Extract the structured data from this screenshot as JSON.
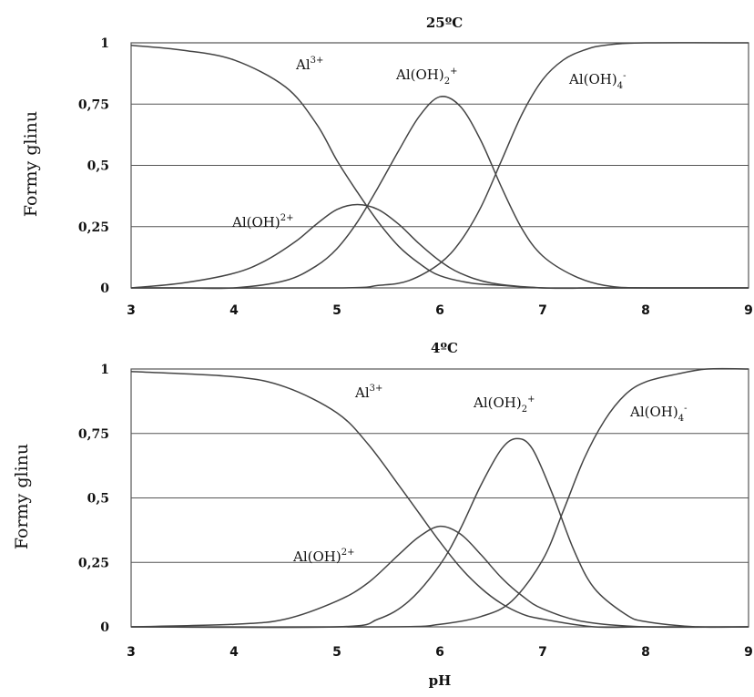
{
  "chart_data": [
    {
      "type": "line",
      "title": "25ºC",
      "ylabel": "Formy  glinu",
      "xlabel": "",
      "xlim": [
        3,
        9
      ],
      "ylim": [
        0,
        1
      ],
      "x_ticks": [
        "3",
        "4",
        "5",
        "6",
        "7",
        "8",
        "9"
      ],
      "y_ticks": [
        "0",
        "0,25",
        "0,5",
        "0,75",
        "1"
      ],
      "y_tick_values": [
        0,
        0.25,
        0.5,
        0.75,
        1
      ],
      "grid": "horizontal",
      "series": [
        {
          "name": "Al3+",
          "label_base": "Al",
          "label_sup": "3+",
          "label_sub": "",
          "label_tail": "",
          "x": [
            3.0,
            3.5,
            4.0,
            4.5,
            4.8,
            5.0,
            5.2,
            5.4,
            5.6,
            5.8,
            6.0,
            6.3,
            6.6,
            7.0,
            7.5,
            8.0,
            9.0
          ],
          "values": [
            0.99,
            0.97,
            0.93,
            0.82,
            0.67,
            0.52,
            0.39,
            0.27,
            0.17,
            0.1,
            0.05,
            0.02,
            0.01,
            0.0,
            0.0,
            0.0,
            0.0
          ]
        },
        {
          "name": "Al(OH)2+",
          "label_base": "Al(OH)",
          "label_sup": "2+",
          "label_sub": "",
          "label_tail": "",
          "x": [
            3.0,
            3.5,
            4.0,
            4.3,
            4.6,
            4.8,
            5.0,
            5.2,
            5.4,
            5.6,
            5.8,
            6.0,
            6.2,
            6.5,
            7.0,
            7.5,
            8.0,
            9.0
          ],
          "values": [
            0.0,
            0.02,
            0.06,
            0.11,
            0.19,
            0.26,
            0.32,
            0.34,
            0.32,
            0.26,
            0.18,
            0.11,
            0.06,
            0.02,
            0.0,
            0.0,
            0.0,
            0.0
          ]
        },
        {
          "name": "Al(OH)2+",
          "label_base": "Al(OH)",
          "label_sup": "+",
          "label_sub": "2",
          "label_tail": "",
          "x": [
            3.0,
            3.5,
            4.0,
            4.5,
            4.8,
            5.0,
            5.2,
            5.4,
            5.6,
            5.8,
            6.0,
            6.2,
            6.4,
            6.6,
            6.8,
            7.0,
            7.3,
            7.6,
            8.0,
            9.0
          ],
          "values": [
            0.0,
            0.0,
            0.0,
            0.03,
            0.09,
            0.16,
            0.27,
            0.41,
            0.56,
            0.7,
            0.78,
            0.74,
            0.6,
            0.41,
            0.24,
            0.13,
            0.05,
            0.01,
            0.0,
            0.0
          ]
        },
        {
          "name": "Al(OH)4-",
          "label_base": "Al(OH)",
          "label_sup": "-",
          "label_sub": "4",
          "label_tail": "",
          "x": [
            3.0,
            5.0,
            5.4,
            5.7,
            6.0,
            6.2,
            6.4,
            6.6,
            6.8,
            7.0,
            7.2,
            7.4,
            7.6,
            8.0,
            9.0
          ],
          "values": [
            0.0,
            0.0,
            0.01,
            0.03,
            0.1,
            0.19,
            0.33,
            0.52,
            0.71,
            0.85,
            0.93,
            0.97,
            0.99,
            1.0,
            1.0
          ]
        }
      ]
    },
    {
      "type": "line",
      "title": "4ºC",
      "ylabel": "Formy  glinu",
      "xlabel": "pH",
      "xlim": [
        3,
        9
      ],
      "ylim": [
        0,
        1
      ],
      "x_ticks": [
        "3",
        "4",
        "5",
        "6",
        "7",
        "8",
        "9"
      ],
      "y_ticks": [
        "0",
        "0,25",
        "0,5",
        "0,75",
        "1"
      ],
      "y_tick_values": [
        0,
        0.25,
        0.5,
        0.75,
        1
      ],
      "grid": "horizontal",
      "series": [
        {
          "name": "Al3+",
          "label_base": "Al",
          "label_sup": "3+",
          "label_sub": "",
          "label_tail": "",
          "x": [
            3.0,
            4.0,
            4.5,
            5.0,
            5.3,
            5.6,
            5.8,
            6.0,
            6.2,
            6.4,
            6.6,
            6.8,
            7.0,
            7.5,
            8.0,
            9.0
          ],
          "values": [
            0.99,
            0.97,
            0.93,
            0.83,
            0.71,
            0.55,
            0.44,
            0.33,
            0.23,
            0.15,
            0.09,
            0.05,
            0.03,
            0.0,
            0.0,
            0.0
          ]
        },
        {
          "name": "Al(OH)2+",
          "label_base": "Al(OH)",
          "label_sup": "2+",
          "label_sub": "",
          "label_tail": "",
          "x": [
            3.0,
            4.0,
            4.5,
            5.0,
            5.3,
            5.6,
            5.8,
            6.0,
            6.2,
            6.4,
            6.6,
            6.8,
            7.0,
            7.4,
            8.0,
            9.0
          ],
          "values": [
            0.0,
            0.01,
            0.03,
            0.1,
            0.17,
            0.28,
            0.35,
            0.39,
            0.36,
            0.28,
            0.19,
            0.12,
            0.07,
            0.02,
            0.0,
            0.0
          ]
        },
        {
          "name": "Al(OH)2+",
          "label_base": "Al(OH)",
          "label_sup": "+",
          "label_sub": "2",
          "label_tail": "",
          "x": [
            3.0,
            5.0,
            5.4,
            5.7,
            6.0,
            6.2,
            6.4,
            6.6,
            6.75,
            6.9,
            7.1,
            7.3,
            7.5,
            7.8,
            8.0,
            8.5,
            9.0
          ],
          "values": [
            0.0,
            0.0,
            0.03,
            0.1,
            0.24,
            0.38,
            0.55,
            0.69,
            0.73,
            0.69,
            0.51,
            0.3,
            0.15,
            0.05,
            0.02,
            0.0,
            0.0
          ]
        },
        {
          "name": "Al(OH)4-",
          "label_base": "Al(OH)",
          "label_sup": "-",
          "label_sub": "4",
          "label_tail": "",
          "x": [
            3.0,
            5.5,
            6.0,
            6.4,
            6.7,
            7.0,
            7.2,
            7.4,
            7.6,
            7.8,
            8.0,
            8.3,
            8.6,
            9.0
          ],
          "values": [
            0.0,
            0.0,
            0.01,
            0.04,
            0.1,
            0.26,
            0.45,
            0.65,
            0.8,
            0.9,
            0.95,
            0.98,
            1.0,
            1.0
          ]
        }
      ]
    }
  ]
}
